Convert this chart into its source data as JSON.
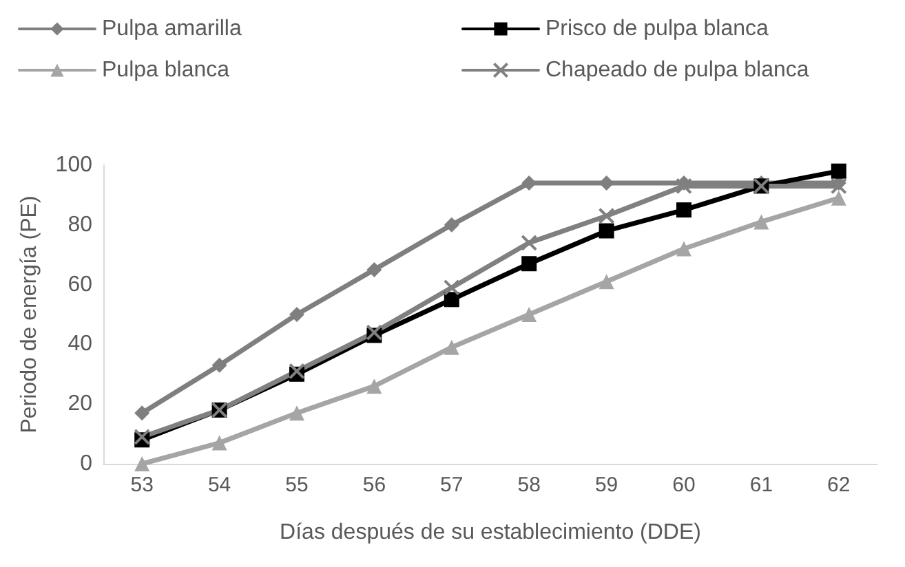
{
  "chart_data": {
    "type": "line",
    "xlabel": "Días después de su establecimiento (DDE)",
    "ylabel": "Periodo de energía (PE)",
    "categories": [
      "53",
      "54",
      "55",
      "56",
      "57",
      "58",
      "59",
      "60",
      "61",
      "62"
    ],
    "series": [
      {
        "name": "Pulpa amarilla",
        "color": "#7f7f7f",
        "marker": "diamond",
        "values": [
          17,
          33,
          50,
          65,
          80,
          94,
          94,
          94,
          94,
          94
        ]
      },
      {
        "name": "Prisco de pulpa blanca",
        "color": "#000000",
        "marker": "square",
        "values": [
          8,
          18,
          30,
          43,
          55,
          67,
          78,
          85,
          93,
          98
        ]
      },
      {
        "name": "Pulpa blanca",
        "color": "#a5a5a5",
        "marker": "triangle",
        "values": [
          0,
          7,
          17,
          26,
          39,
          50,
          61,
          72,
          81,
          89
        ]
      },
      {
        "name": "Chapeado de pulpa blanca",
        "color": "#808080",
        "marker": "cross",
        "values": [
          9,
          18,
          31,
          44,
          59,
          74,
          83,
          93,
          93,
          93
        ]
      }
    ],
    "ylim": [
      0,
      100
    ],
    "yticks": [
      0,
      20,
      40,
      60,
      80,
      100
    ],
    "grid": false,
    "legend": "top"
  }
}
